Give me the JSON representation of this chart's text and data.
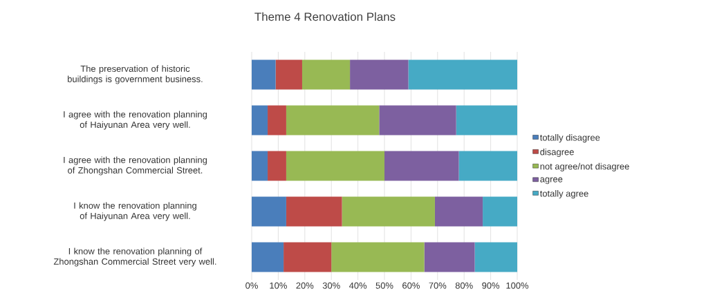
{
  "chart_data": {
    "type": "bar",
    "orientation": "horizontal",
    "stacked": true,
    "title": "Theme 4 Renovation Plans",
    "categories": [
      "The preservation of historic buildings is government business.",
      "I agree with the renovation planning of Haiyunan Area very well.",
      "I agree with the renovation planning of Zhongshan Commercial Street.",
      "I know the renovation planning of Haiyunan Area very well.",
      "I know the renovation planning of Zhongshan Commercial Street very well."
    ],
    "series": [
      {
        "name": "totally disagree",
        "color": "#4a7ebb",
        "values": [
          9,
          6,
          6,
          13,
          12
        ]
      },
      {
        "name": "disagree",
        "color": "#be4b48",
        "values": [
          10,
          7,
          7,
          21,
          18
        ]
      },
      {
        "name": "not agree/not disagree",
        "color": "#98b954",
        "values": [
          18,
          35,
          37,
          35,
          35
        ]
      },
      {
        "name": "agree",
        "color": "#7d60a0",
        "values": [
          22,
          29,
          28,
          18,
          19
        ]
      },
      {
        "name": "totally agree",
        "color": "#46aac5",
        "values": [
          41,
          23,
          22,
          13,
          16
        ]
      }
    ],
    "xlim": [
      0,
      100
    ],
    "xticks": [
      {
        "value": 0,
        "label": "0%"
      },
      {
        "value": 10,
        "label": "10%"
      },
      {
        "value": 20,
        "label": "20%"
      },
      {
        "value": 30,
        "label": "30%"
      },
      {
        "value": 40,
        "label": "40%"
      },
      {
        "value": 50,
        "label": "50%"
      },
      {
        "value": 60,
        "label": "60%"
      },
      {
        "value": 70,
        "label": "70%"
      },
      {
        "value": 80,
        "label": "80%"
      },
      {
        "value": 90,
        "label": "90%"
      },
      {
        "value": 100,
        "label": "100%"
      }
    ],
    "grid": "x",
    "legend": "right"
  }
}
